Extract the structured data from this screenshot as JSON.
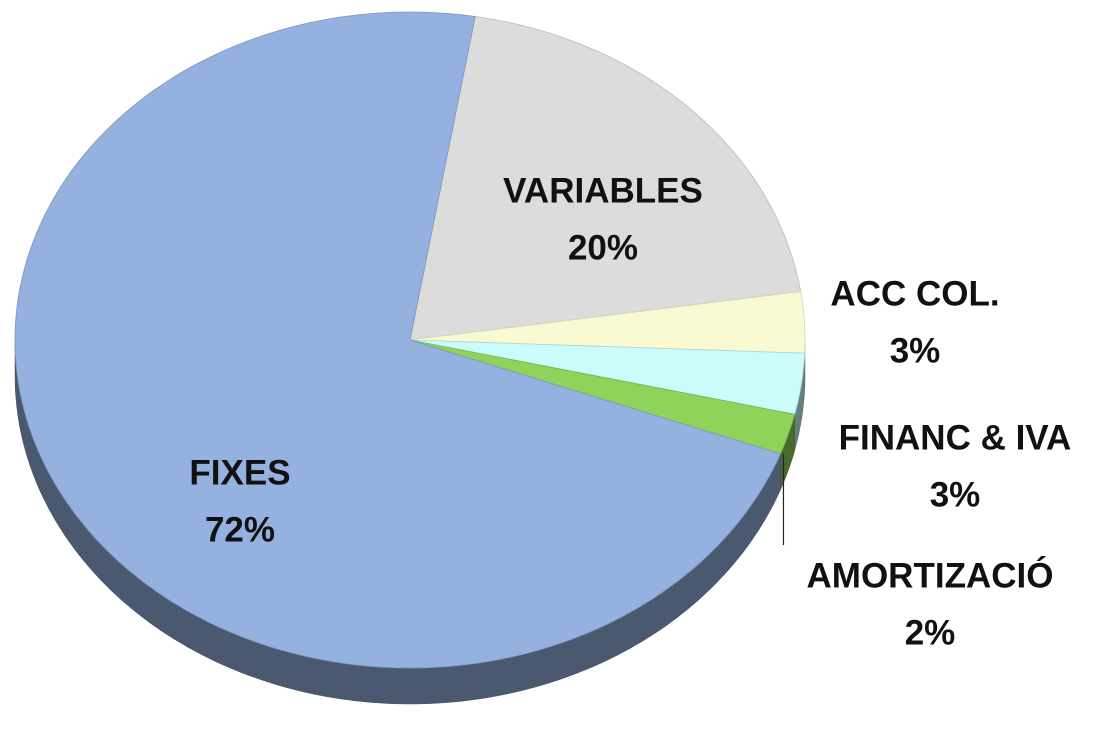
{
  "chart_data": {
    "type": "pie",
    "categories": [
      "VARIABLES",
      "ACC COL.",
      "FINANC & IVA",
      "AMORTIZACIÓ",
      "FIXES"
    ],
    "values": [
      20,
      3,
      3,
      2,
      72
    ],
    "value_labels": [
      "20%",
      "3%",
      "3%",
      "2%",
      "72%"
    ],
    "colors": [
      "#dcdcdc",
      "#fafad2",
      "#cbfbfb",
      "#8fd35a",
      "#95b1e0"
    ]
  }
}
